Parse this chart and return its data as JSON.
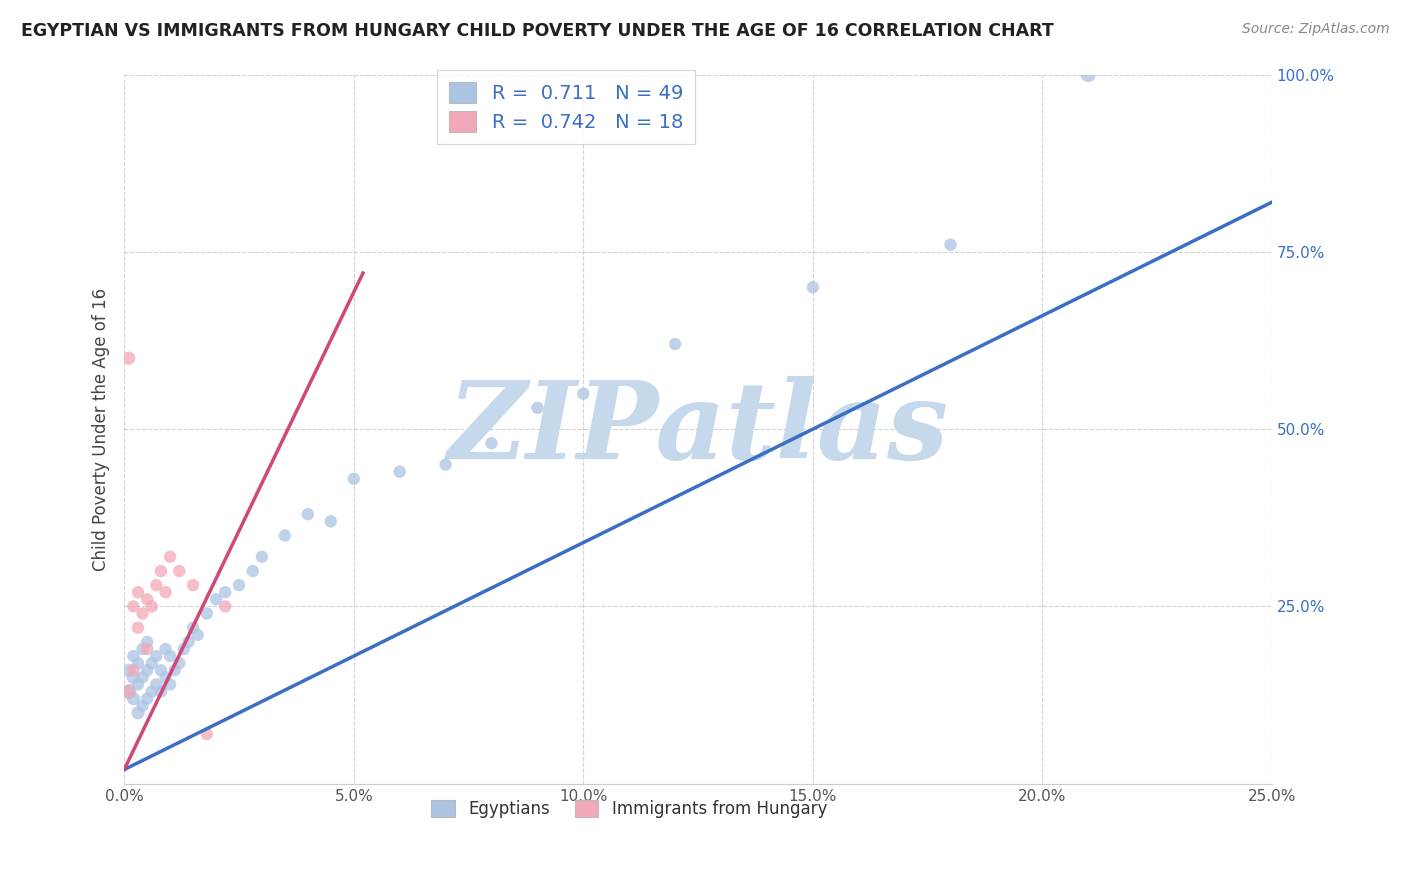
{
  "title": "EGYPTIAN VS IMMIGRANTS FROM HUNGARY CHILD POVERTY UNDER THE AGE OF 16 CORRELATION CHART",
  "source": "Source: ZipAtlas.com",
  "ylabel": "Child Poverty Under the Age of 16",
  "xlim": [
    0.0,
    0.25
  ],
  "ylim": [
    0.0,
    1.0
  ],
  "xticks": [
    0.0,
    0.05,
    0.1,
    0.15,
    0.2,
    0.25
  ],
  "xtick_labels": [
    "0.0%",
    "5.0%",
    "10.0%",
    "15.0%",
    "20.0%",
    "25.0%"
  ],
  "yticks": [
    0.0,
    0.25,
    0.5,
    0.75,
    1.0
  ],
  "ytick_labels": [
    "",
    "25.0%",
    "50.0%",
    "75.0%",
    "100.0%"
  ],
  "blue_R": 0.711,
  "blue_N": 49,
  "pink_R": 0.742,
  "pink_N": 18,
  "blue_color": "#aac4e2",
  "pink_color": "#f2a8b8",
  "blue_line_color": "#3a6fc4",
  "pink_line_color": "#d04878",
  "watermark": "ZIPatlas",
  "watermark_color": "#c5d8ec",
  "legend_label_blue": "Egyptians",
  "legend_label_pink": "Immigrants from Hungary",
  "blue_scatter_x": [
    0.001,
    0.001,
    0.002,
    0.002,
    0.002,
    0.003,
    0.003,
    0.003,
    0.004,
    0.004,
    0.004,
    0.005,
    0.005,
    0.005,
    0.006,
    0.006,
    0.007,
    0.007,
    0.008,
    0.008,
    0.009,
    0.009,
    0.01,
    0.01,
    0.011,
    0.012,
    0.013,
    0.014,
    0.015,
    0.016,
    0.018,
    0.02,
    0.022,
    0.025,
    0.028,
    0.03,
    0.035,
    0.04,
    0.045,
    0.05,
    0.06,
    0.07,
    0.08,
    0.09,
    0.1,
    0.12,
    0.15,
    0.18,
    0.21
  ],
  "blue_scatter_y": [
    0.13,
    0.16,
    0.12,
    0.15,
    0.18,
    0.1,
    0.14,
    0.17,
    0.11,
    0.15,
    0.19,
    0.12,
    0.16,
    0.2,
    0.13,
    0.17,
    0.14,
    0.18,
    0.13,
    0.16,
    0.15,
    0.19,
    0.14,
    0.18,
    0.16,
    0.17,
    0.19,
    0.2,
    0.22,
    0.21,
    0.24,
    0.26,
    0.27,
    0.28,
    0.3,
    0.32,
    0.35,
    0.38,
    0.37,
    0.43,
    0.44,
    0.45,
    0.48,
    0.53,
    0.55,
    0.62,
    0.7,
    0.76,
    1.0
  ],
  "blue_scatter_size": [
    120,
    90,
    90,
    90,
    80,
    90,
    80,
    80,
    80,
    80,
    80,
    80,
    80,
    80,
    80,
    80,
    80,
    80,
    80,
    80,
    80,
    80,
    80,
    80,
    80,
    80,
    80,
    80,
    80,
    80,
    80,
    80,
    80,
    80,
    80,
    80,
    80,
    80,
    80,
    80,
    80,
    80,
    80,
    80,
    80,
    80,
    80,
    80,
    120
  ],
  "pink_scatter_x": [
    0.001,
    0.001,
    0.002,
    0.002,
    0.003,
    0.003,
    0.004,
    0.005,
    0.005,
    0.006,
    0.007,
    0.008,
    0.009,
    0.01,
    0.012,
    0.015,
    0.018,
    0.022
  ],
  "pink_scatter_y": [
    0.13,
    0.6,
    0.16,
    0.25,
    0.22,
    0.27,
    0.24,
    0.19,
    0.26,
    0.25,
    0.28,
    0.3,
    0.27,
    0.32,
    0.3,
    0.28,
    0.07,
    0.25
  ],
  "pink_scatter_size": [
    90,
    90,
    80,
    80,
    80,
    80,
    80,
    80,
    80,
    80,
    80,
    80,
    80,
    80,
    80,
    80,
    80,
    80
  ],
  "blue_line_x": [
    0.0,
    0.25
  ],
  "blue_line_y": [
    0.02,
    0.82
  ],
  "pink_line_x": [
    0.0,
    0.052
  ],
  "pink_line_y": [
    0.02,
    0.72
  ]
}
